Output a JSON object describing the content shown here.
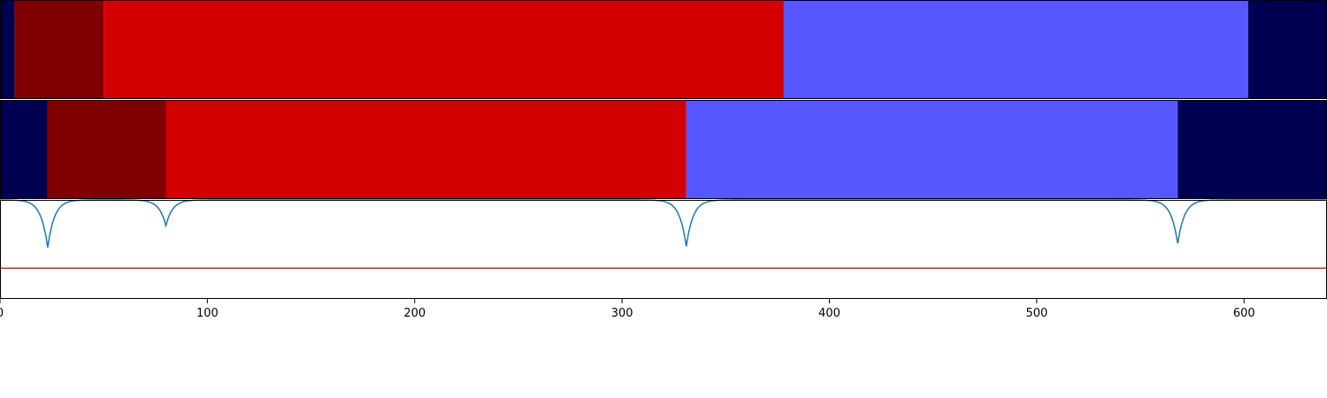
{
  "colors": {
    "dark_navy": "#000050",
    "dark_red": "#7f0000",
    "red": "#d20000",
    "blue": "#5757ff",
    "line": "#1f77b4",
    "threshold": "#d62728",
    "axis": "#000000"
  },
  "chart_data": {
    "type": "area",
    "xlim": [
      0,
      640
    ],
    "x_ticks": [
      0,
      100,
      200,
      300,
      400,
      500,
      600
    ],
    "x_tick_labels": [
      "0",
      "100",
      "200",
      "300",
      "400",
      "500",
      "600"
    ],
    "segmentation_tracks": [
      {
        "segments": [
          {
            "start": 0,
            "end": 7,
            "color": "dark_navy"
          },
          {
            "start": 7,
            "end": 50,
            "color": "dark_red"
          },
          {
            "start": 50,
            "end": 378,
            "color": "red"
          },
          {
            "start": 378,
            "end": 602,
            "color": "blue"
          },
          {
            "start": 602,
            "end": 640,
            "color": "dark_navy"
          }
        ]
      },
      {
        "segments": [
          {
            "start": 0,
            "end": 23,
            "color": "dark_navy"
          },
          {
            "start": 23,
            "end": 80,
            "color": "dark_red"
          },
          {
            "start": 80,
            "end": 331,
            "color": "red"
          },
          {
            "start": 331,
            "end": 568,
            "color": "blue"
          },
          {
            "start": 568,
            "end": 640,
            "color": "dark_navy"
          }
        ]
      }
    ],
    "signal": {
      "baseline": 1.0,
      "ylim": [
        0,
        1
      ],
      "threshold": 0.31,
      "dips": [
        {
          "x": 23,
          "min": 0.52
        },
        {
          "x": 80,
          "min": 0.74
        },
        {
          "x": 331,
          "min": 0.53
        },
        {
          "x": 568,
          "min": 0.56
        }
      ]
    }
  }
}
